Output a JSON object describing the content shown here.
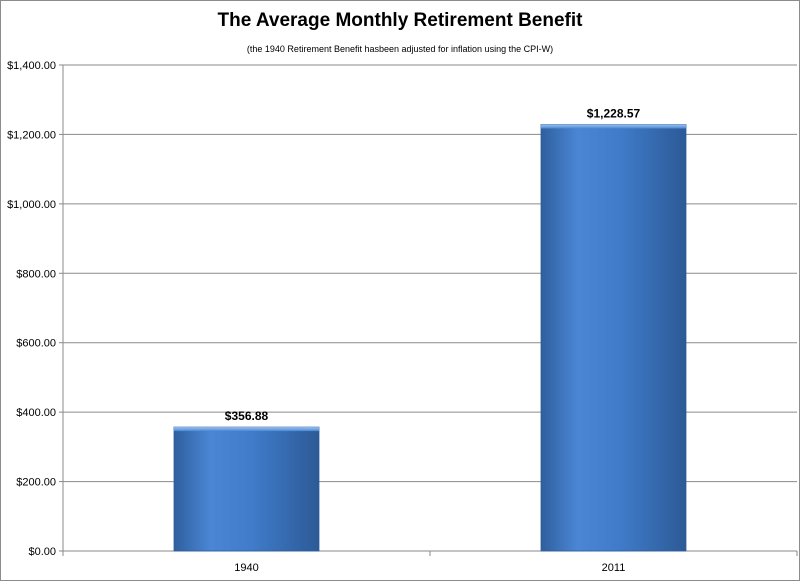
{
  "chart_data": {
    "type": "bar",
    "title": "The Average Monthly Retirement Benefit",
    "subtitle": "(the 1940 Retirement Benefit hasbeen adjusted for inflation using the CPI-W)",
    "categories": [
      "1940",
      "2011"
    ],
    "values": [
      356.88,
      1228.57
    ],
    "data_labels": [
      "$356.88",
      "$1,228.57"
    ],
    "xlabel": "",
    "ylabel": "",
    "ylim": [
      0,
      1400
    ],
    "yticks": [
      0,
      200,
      400,
      600,
      800,
      1000,
      1200,
      1400
    ],
    "ytick_labels": [
      "$0.00",
      "$200.00",
      "$400.00",
      "$600.00",
      "$800.00",
      "$1,000.00",
      "$1,200.00",
      "$1,400.00"
    ],
    "grid": true,
    "legend": "none",
    "bar_color": "#4a86d4"
  }
}
